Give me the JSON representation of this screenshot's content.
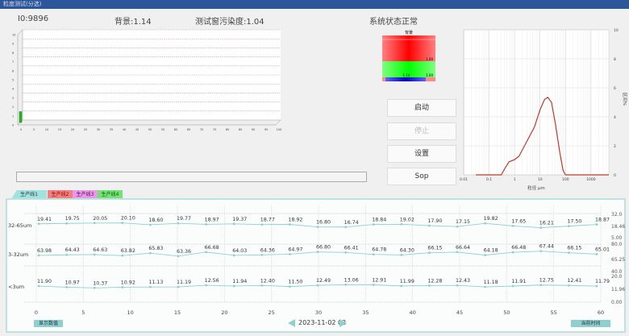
{
  "window": {
    "title": "粒度测试(分选)"
  },
  "header": {
    "io": "I0:9896",
    "background": "背景:1.14",
    "window_contamination": "测试窗污染度:1.04",
    "status": "系统状态正常"
  },
  "bar_chart": {
    "y_ticks": [
      "0",
      "1",
      "2",
      "3",
      "4",
      "5",
      "6",
      "7",
      "8",
      "9",
      "10"
    ],
    "x_ticks": [
      "0",
      "5",
      "10",
      "15",
      "20",
      "25",
      "30",
      "35",
      "40",
      "45",
      "50",
      "55",
      "60",
      "65",
      "70",
      "75",
      "80",
      "85",
      "90",
      "95",
      "100"
    ],
    "bar_value": 1.2,
    "bar_color": "#22bb22"
  },
  "progress": {
    "value": 0
  },
  "gauge": {
    "label": "背景",
    "upper_value": "1.00",
    "lower_value": "1.00",
    "current_value": "1.14"
  },
  "buttons": {
    "start": "启动",
    "stop": "停止",
    "settings": "设置",
    "sop": "Sop"
  },
  "distribution_chart": {
    "type": "line",
    "xlabel": "粒径 μm",
    "ylabel": "区间%",
    "x_ticks": [
      "0.01",
      "0.1",
      "1",
      "10",
      "100",
      "1000"
    ],
    "y_ticks": [
      "0",
      "2",
      "4",
      "6",
      "8",
      "10"
    ],
    "xlim": [
      0.01,
      5000
    ],
    "ylim": [
      0,
      10
    ],
    "scale": "log-x",
    "color": "#c0392b",
    "points": [
      [
        0.03,
        0
      ],
      [
        0.3,
        0
      ],
      [
        0.4,
        0.4
      ],
      [
        0.6,
        0.9
      ],
      [
        1,
        1.05
      ],
      [
        1.5,
        1.3
      ],
      [
        3,
        2.3
      ],
      [
        6,
        3.3
      ],
      [
        10,
        4.5
      ],
      [
        15,
        5.2
      ],
      [
        20,
        5.35
      ],
      [
        28,
        5.0
      ],
      [
        40,
        3.5
      ],
      [
        60,
        1.5
      ],
      [
        80,
        0.3
      ],
      [
        100,
        0
      ],
      [
        5000,
        0
      ]
    ]
  },
  "tabs": [
    {
      "label": "生产线1",
      "color": "#9fe3e0"
    },
    {
      "label": "生产线2",
      "color": "#f08080"
    },
    {
      "label": "生产线3",
      "color": "#e79be7"
    },
    {
      "label": "生产线4",
      "color": "#77e077"
    }
  ],
  "trend": {
    "rows": [
      {
        "label": "32-65um",
        "axis": [
          "32.0",
          "18.46",
          "5.00"
        ],
        "values": [
          19.41,
          19.75,
          20.05,
          20.1,
          18.6,
          19.77,
          18.97,
          19.37,
          18.77,
          18.92,
          16.8,
          16.74,
          18.84,
          19.02,
          17.9,
          17.15,
          19.82,
          17.65,
          16.21,
          17.5,
          18.87
        ]
      },
      {
        "label": "3-32um",
        "axis": [
          "80.0",
          "65.25",
          "40.0"
        ],
        "values": [
          63.98,
          64.43,
          64.63,
          63.82,
          65.83,
          63.36,
          66.68,
          64.03,
          64.36,
          64.97,
          66.8,
          66.41,
          64.78,
          64.3,
          66.15,
          66.64,
          64.18,
          66.48,
          67.44,
          66.15,
          65.01
        ]
      },
      {
        "label": "<3um",
        "axis": [
          "20.0",
          "11.96",
          "0.00"
        ],
        "values": [
          11.9,
          10.97,
          10.37,
          10.92,
          11.13,
          11.19,
          12.56,
          11.94,
          12.4,
          11.5,
          12.49,
          13.06,
          12.91,
          11.99,
          12.28,
          12.43,
          11.18,
          11.91,
          12.75,
          12.41,
          11.79
        ]
      }
    ],
    "x_ticks": [
      "0",
      "5",
      "10",
      "15",
      "20",
      "25",
      "30",
      "35",
      "40",
      "45",
      "50",
      "55",
      "60"
    ],
    "line_color": "#8fd0cf",
    "show_values_button": "显示数值",
    "date": "2023-11-02 02",
    "current_time_button": "当前时间"
  }
}
